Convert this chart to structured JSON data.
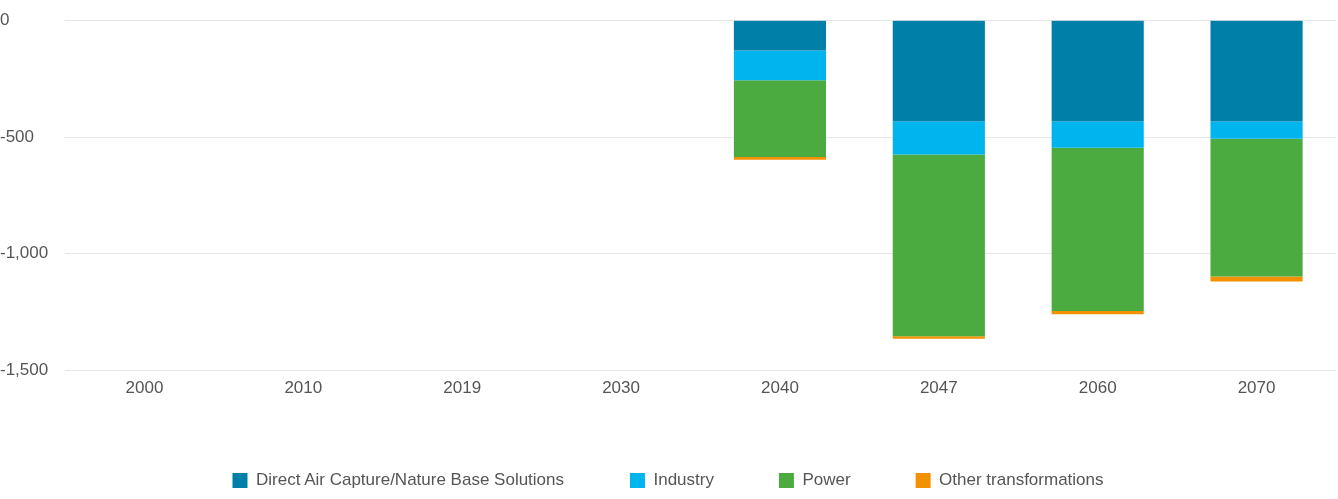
{
  "chart_data": {
    "type": "bar",
    "stacked": true,
    "categories": [
      "2000",
      "2010",
      "2019",
      "2030",
      "2040",
      "2047",
      "2060",
      "2070"
    ],
    "series": [
      {
        "name": "Direct Air Capture/Nature Base Solutions",
        "color": "#0080a8",
        "values": [
          null,
          null,
          null,
          null,
          -130,
          -434,
          -434,
          -434
        ]
      },
      {
        "name": "Industry",
        "color": "#00b4ee",
        "values": [
          null,
          null,
          null,
          null,
          -127,
          -141,
          -112,
          -73
        ]
      },
      {
        "name": "Power",
        "color": "#4bab41",
        "values": [
          null,
          null,
          null,
          null,
          -329,
          -778,
          -699,
          -590
        ]
      },
      {
        "name": "Other transformations",
        "color": "#f39200",
        "values": [
          null,
          null,
          null,
          null,
          -11,
          -11,
          -14,
          -22
        ]
      }
    ],
    "ylim": [
      -1500,
      0
    ],
    "yticks": [
      {
        "value": -1500,
        "label": "-1,500"
      },
      {
        "value": -1000,
        "label": "-1,000"
      },
      {
        "value": -500,
        "label": "-500"
      },
      0
    ],
    "grid": "y",
    "legend": "bottom"
  }
}
